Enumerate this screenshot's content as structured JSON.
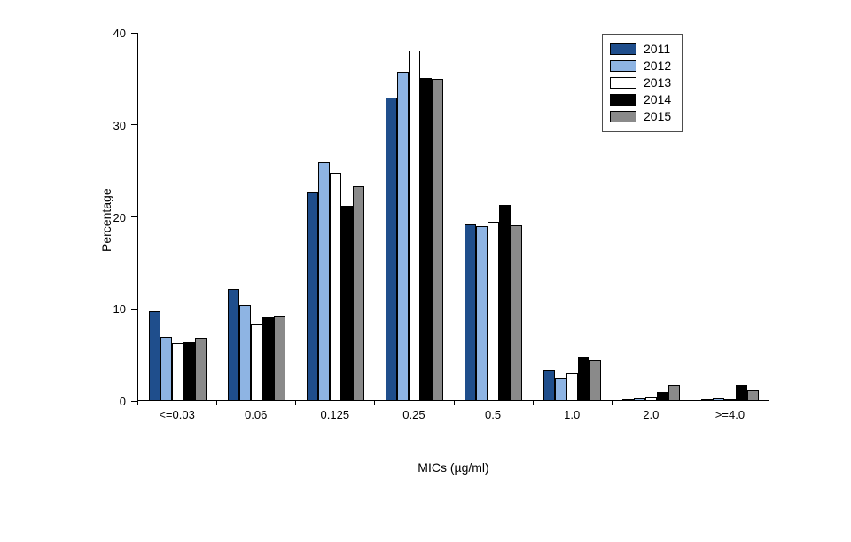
{
  "chart_data": {
    "type": "bar",
    "title": "",
    "xlabel": "MICs (µg/ml)",
    "ylabel": "Percentage",
    "ylim": [
      0,
      40
    ],
    "yticks": [
      0,
      10,
      20,
      30,
      40
    ],
    "grid": false,
    "legend_position": "top-right",
    "categories": [
      "<=0.03",
      "0.06",
      "0.125",
      "0.25",
      "0.5",
      "1.0",
      "2.0",
      ">=4.0"
    ],
    "series": [
      {
        "name": "2011",
        "color": "#1F4E8C",
        "values": [
          9.6,
          12.0,
          22.6,
          32.9,
          19.1,
          3.3,
          0.1,
          0.1
        ]
      },
      {
        "name": "2012",
        "color": "#8EB4E3",
        "values": [
          6.8,
          10.3,
          25.8,
          35.7,
          18.9,
          2.4,
          0.2,
          0.2
        ]
      },
      {
        "name": "2013",
        "color": "#FFFFFF",
        "values": [
          6.2,
          8.3,
          24.7,
          38.0,
          19.4,
          2.9,
          0.3,
          0.1
        ]
      },
      {
        "name": "2014",
        "color": "#000000",
        "values": [
          6.3,
          9.1,
          21.1,
          35.0,
          21.2,
          4.7,
          0.9,
          1.6
        ]
      },
      {
        "name": "2015",
        "color": "#8A8A8A",
        "values": [
          6.7,
          9.2,
          23.2,
          34.9,
          19.0,
          4.3,
          1.6,
          1.1
        ]
      }
    ]
  }
}
